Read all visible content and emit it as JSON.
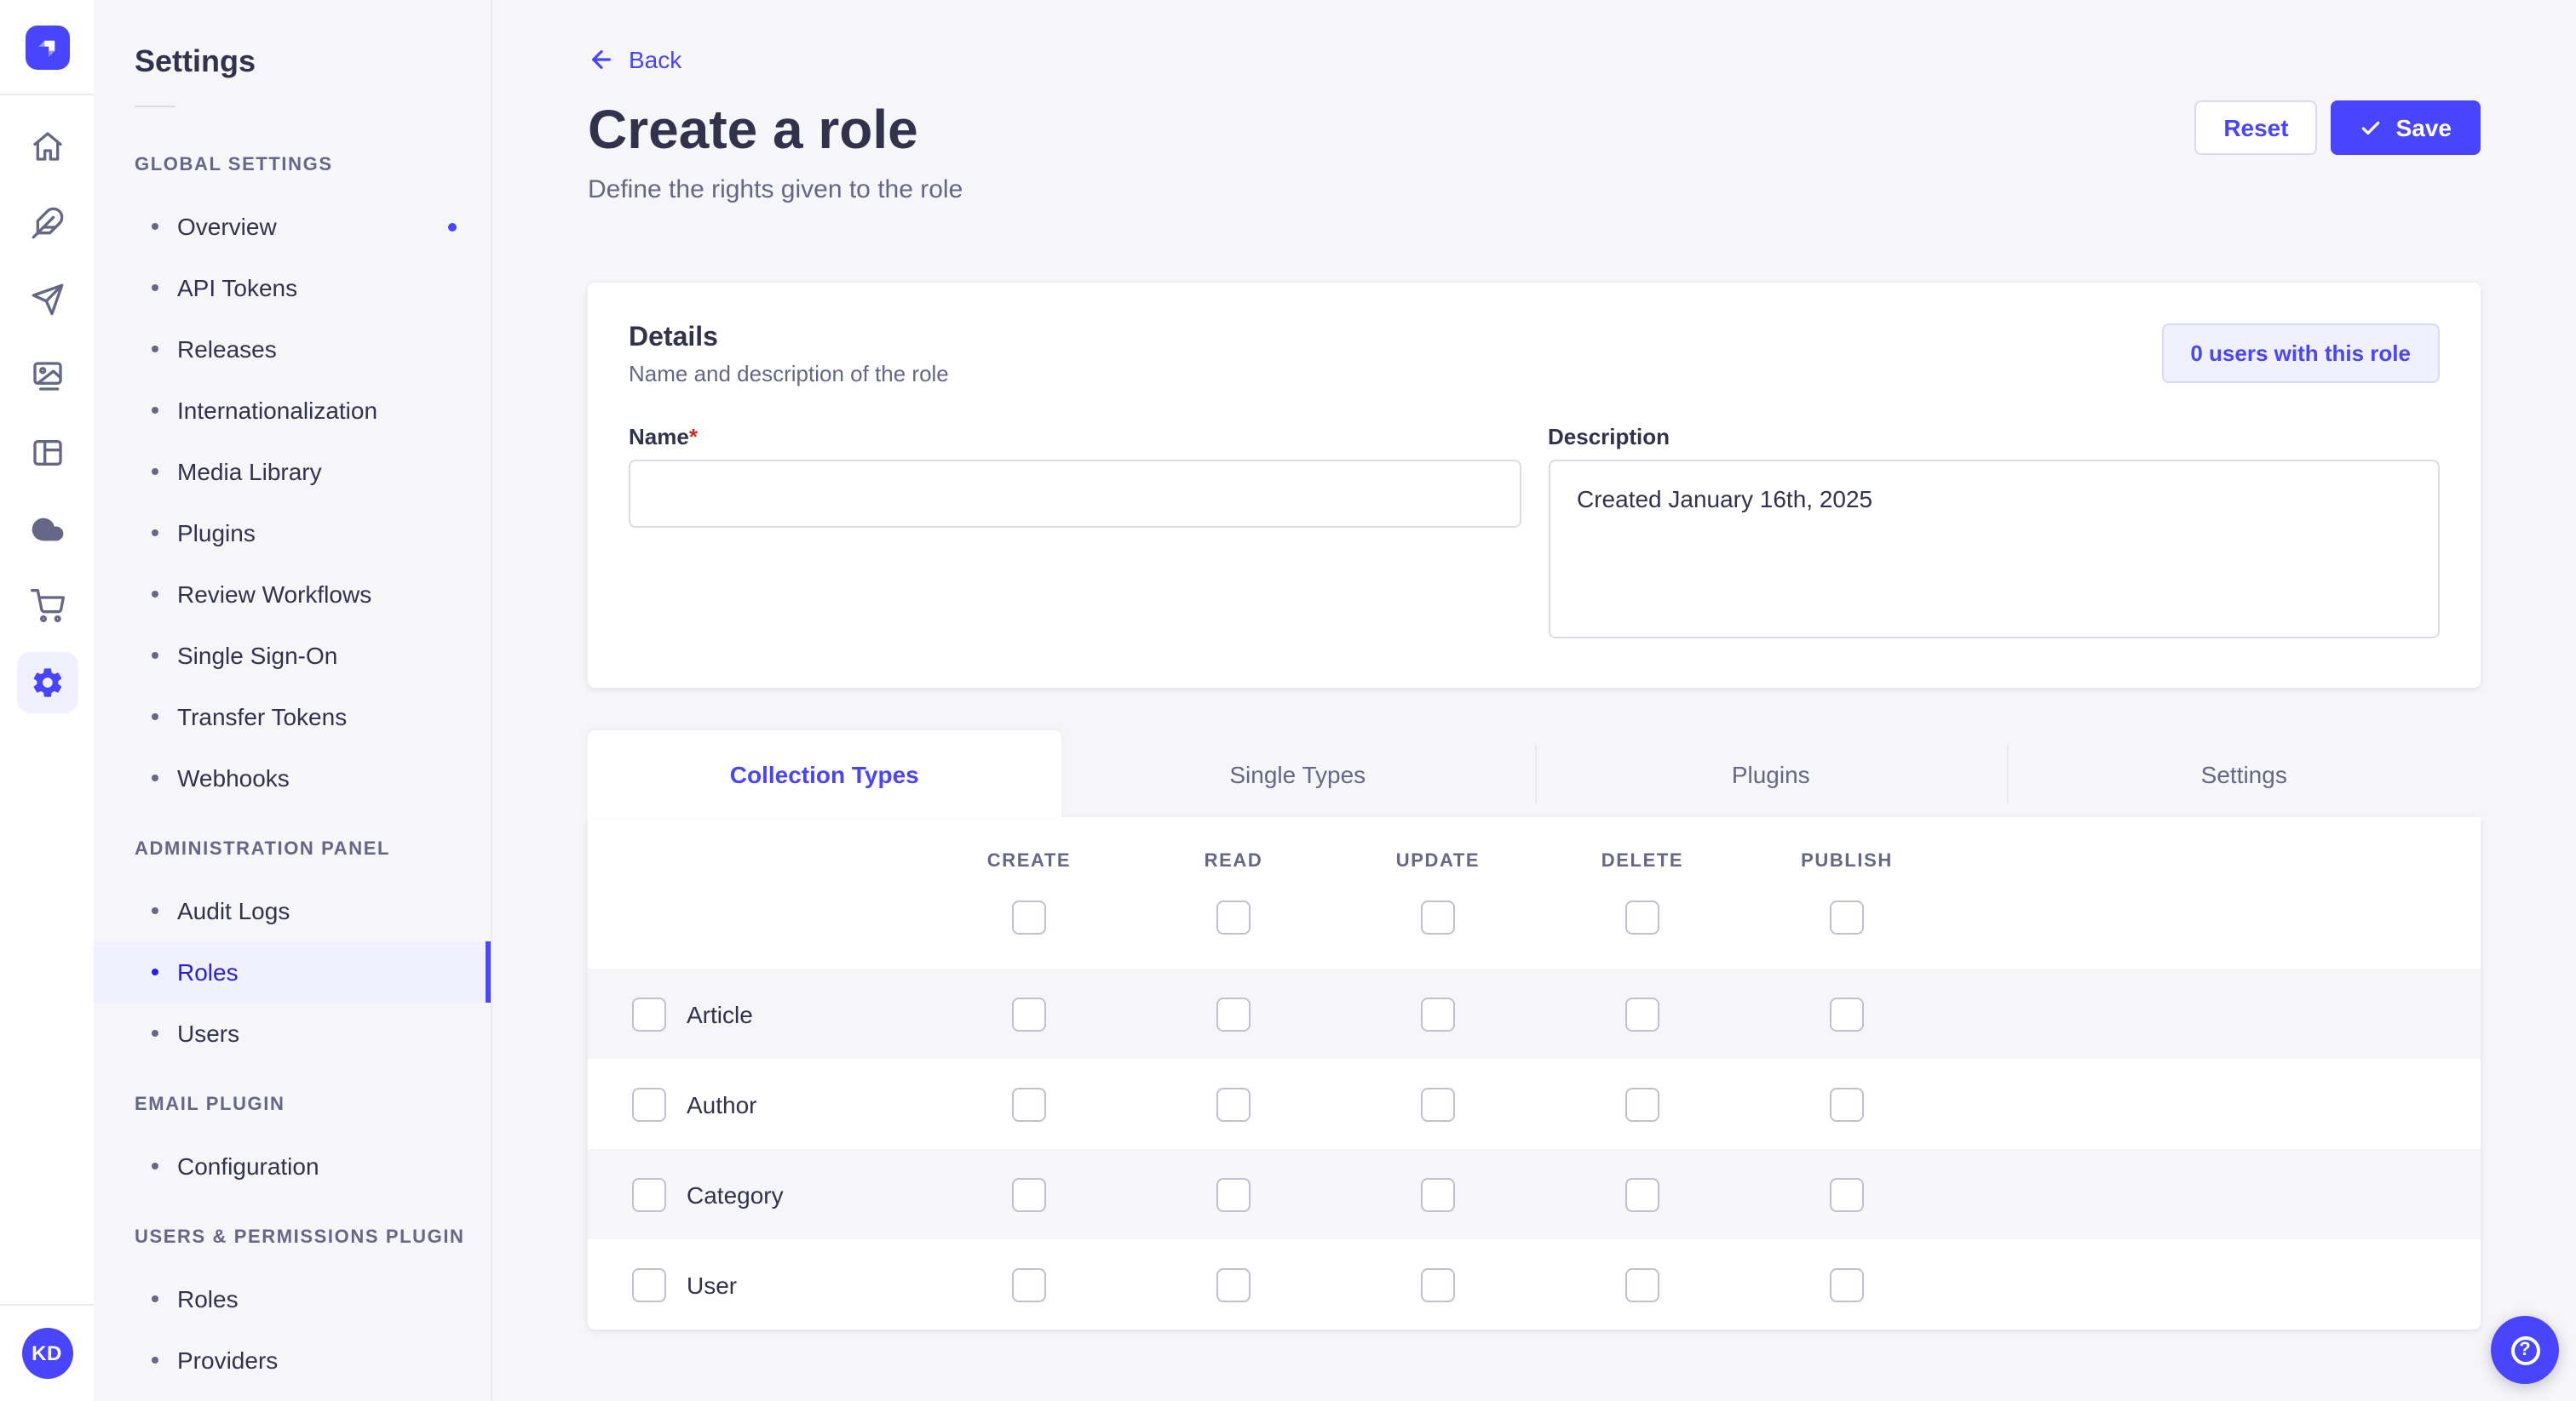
{
  "rail": {
    "logo": "strapi-logo",
    "icons": [
      {
        "name": "home"
      },
      {
        "name": "feather"
      },
      {
        "name": "paper-plane"
      },
      {
        "name": "media-library"
      },
      {
        "name": "layout"
      },
      {
        "name": "cloud"
      },
      {
        "name": "marketplace-cart"
      },
      {
        "name": "settings-gear",
        "active": true
      }
    ],
    "avatar_initials": "KD"
  },
  "sidebar": {
    "title": "Settings",
    "sections": [
      {
        "label": "GLOBAL SETTINGS",
        "items": [
          {
            "label": "Overview",
            "notification": true
          },
          {
            "label": "API Tokens"
          },
          {
            "label": "Releases"
          },
          {
            "label": "Internationalization"
          },
          {
            "label": "Media Library"
          },
          {
            "label": "Plugins"
          },
          {
            "label": "Review Workflows"
          },
          {
            "label": "Single Sign-On"
          },
          {
            "label": "Transfer Tokens"
          },
          {
            "label": "Webhooks"
          }
        ]
      },
      {
        "label": "ADMINISTRATION PANEL",
        "items": [
          {
            "label": "Audit Logs"
          },
          {
            "label": "Roles",
            "active": true
          },
          {
            "label": "Users"
          }
        ]
      },
      {
        "label": "EMAIL PLUGIN",
        "items": [
          {
            "label": "Configuration"
          }
        ]
      },
      {
        "label": "USERS & PERMISSIONS PLUGIN",
        "items": [
          {
            "label": "Roles"
          },
          {
            "label": "Providers"
          }
        ]
      }
    ]
  },
  "header": {
    "back_label": "Back",
    "title": "Create a role",
    "subtitle": "Define the rights given to the role",
    "reset_label": "Reset",
    "save_label": "Save"
  },
  "details": {
    "heading": "Details",
    "subheading": "Name and description of the role",
    "users_badge": "0 users with this role",
    "name_label": "Name",
    "name_required_mark": "*",
    "name_value": "",
    "description_label": "Description",
    "description_value": "Created January 16th, 2025"
  },
  "permissions": {
    "tabs": [
      {
        "label": "Collection Types",
        "active": true
      },
      {
        "label": "Single Types"
      },
      {
        "label": "Plugins"
      },
      {
        "label": "Settings"
      }
    ],
    "columns": [
      "CREATE",
      "READ",
      "UPDATE",
      "DELETE",
      "PUBLISH"
    ],
    "rows": [
      {
        "label": "Article",
        "checked": [
          false,
          false,
          false,
          false,
          false
        ],
        "row_checked": false
      },
      {
        "label": "Author",
        "checked": [
          false,
          false,
          false,
          false,
          false
        ],
        "row_checked": false
      },
      {
        "label": "Category",
        "checked": [
          false,
          false,
          false,
          false,
          false
        ],
        "row_checked": false
      },
      {
        "label": "User",
        "checked": [
          false,
          false,
          false,
          false,
          false
        ],
        "row_checked": false
      }
    ],
    "header_checked": [
      false,
      false,
      false,
      false,
      false
    ]
  },
  "help": {
    "icon": "question-mark"
  },
  "colors": {
    "accent": "#4945ff",
    "accent_dark": "#271fe0",
    "accent_bg": "#f0f0ff",
    "accent_border": "#d9d8ff",
    "page_bg": "#f6f6f9",
    "card_bg": "#ffffff",
    "border": "#eaeaef",
    "input_border": "#dcdce4",
    "checkbox_border": "#c0c0cf",
    "text_dark": "#32324d",
    "text_gray": "#666687",
    "required_red": "#d02b20"
  }
}
